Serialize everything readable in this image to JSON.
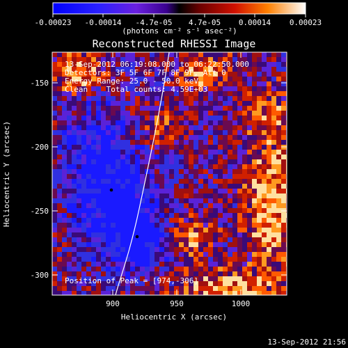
{
  "colorbar": {
    "tick_labels": [
      "-0.00023",
      "-0.00014",
      "-4.7e-05",
      "4.7e-05",
      "0.00014",
      "0.00023"
    ],
    "units_label": "(photons cm⁻² s⁻¹ asec⁻²)",
    "range": [
      -0.00023,
      0.00023
    ]
  },
  "plot": {
    "title": "Reconstructed RHESSI Image",
    "xlabel": "Heliocentric X (arcsec)",
    "ylabel": "Heliocentric Y (arcsec)",
    "x_ticks": [
      "900",
      "950",
      "1000"
    ],
    "y_ticks": [
      "-150",
      "-200",
      "-250",
      "-300"
    ],
    "xlim": [
      858,
      1042
    ],
    "ylim": [
      -318,
      -132
    ]
  },
  "annotations": {
    "time_range": "13-Sep-2012 06:19:08.000 to 06:22:50.000",
    "detectors": "Detectors: 3F 5F 6F 7F 8F 9F, Att 0",
    "energy": "Energy Range: 25.0 - 50.0 keV",
    "clean": "Clean    Total counts: 4.59E+03",
    "peak": "Position of Peak = [974,-306]"
  },
  "footer": {
    "timestamp": "13-Sep-2012 21:56"
  },
  "colors": {
    "background": "#000000",
    "text": "#ffffff",
    "limb_line": "#ffffff"
  }
}
